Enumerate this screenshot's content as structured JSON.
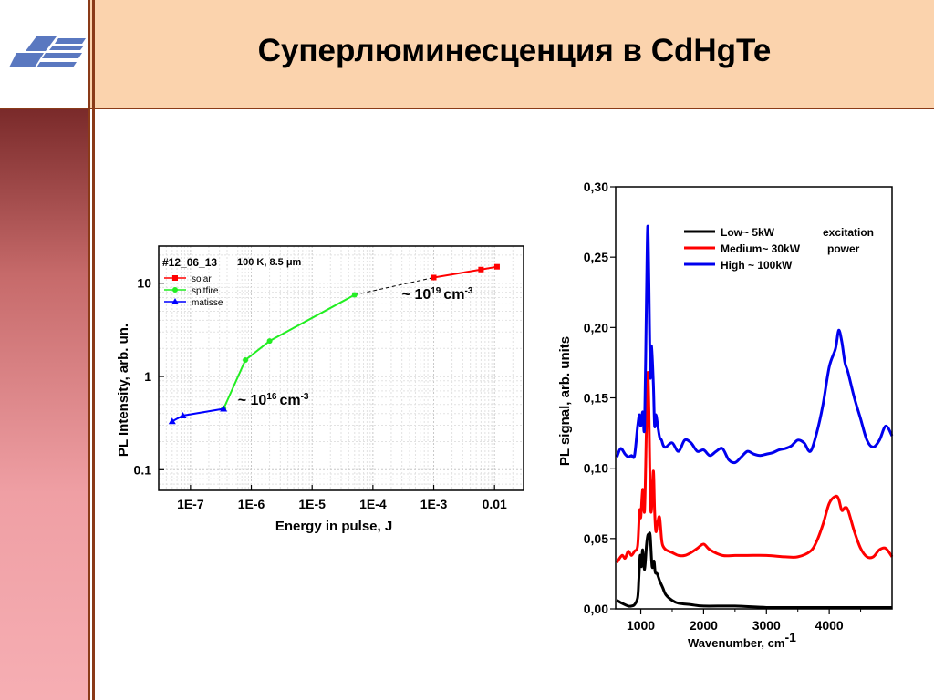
{
  "slide": {
    "title": "Суперлюминесценция в CdHgTe"
  },
  "chart_data": [
    {
      "type": "line",
      "x_scale": "log",
      "y_scale": "log",
      "xlabel": "Energy in pulse, J",
      "ylabel": "PL Intensity, arb. un.",
      "xlim": [
        3e-08,
        0.03
      ],
      "ylim": [
        0.06,
        25
      ],
      "x_ticks": [
        {
          "value": 1e-07,
          "label": "1E-7"
        },
        {
          "value": 1e-06,
          "label": "1E-6"
        },
        {
          "value": 1e-05,
          "label": "1E-5"
        },
        {
          "value": 0.0001,
          "label": "1E-4"
        },
        {
          "value": 0.001,
          "label": "1E-3"
        },
        {
          "value": 0.01,
          "label": "0.01"
        }
      ],
      "y_ticks": [
        {
          "value": 0.1,
          "label": "0.1"
        },
        {
          "value": 1,
          "label": "1"
        },
        {
          "value": 10,
          "label": "10"
        }
      ],
      "sample_label": "#12_06_13",
      "conditions_label": "100 K, 8.5 μm",
      "grid": true,
      "legend_position": "top-left",
      "series": [
        {
          "name": "solar",
          "color": "#ff0000",
          "marker": "square",
          "x": [
            0.001,
            0.006,
            0.011
          ],
          "y": [
            11.5,
            14,
            15
          ]
        },
        {
          "name": "spitfire",
          "color": "#22ee22",
          "marker": "circle",
          "x": [
            3.5e-07,
            8e-07,
            2e-06,
            5e-05
          ],
          "y": [
            0.45,
            1.5,
            2.4,
            7.5
          ]
        },
        {
          "name": "matisse",
          "color": "#0000ff",
          "marker": "triangle",
          "x": [
            5e-08,
            7.5e-08,
            3.5e-07
          ],
          "y": [
            0.33,
            0.38,
            0.45
          ]
        }
      ],
      "connector": {
        "style": "dashed",
        "color": "#000000",
        "x": [
          5e-05,
          0.001
        ],
        "y": [
          7.5,
          11.5
        ]
      },
      "annotations": [
        {
          "text": "~ 10",
          "sup": "19",
          "unit": "cm",
          "unit_sup": "-3",
          "x": 0.0003,
          "y": 6.8
        },
        {
          "text": "~ 10",
          "sup": "16",
          "unit": "cm",
          "unit_sup": "-3",
          "x": 6e-07,
          "y": 0.5
        }
      ]
    },
    {
      "type": "line",
      "xlabel": "Wavenumber, cm",
      "xlabel_sup": "-1",
      "ylabel": "PL signal, arb. units",
      "xlim": [
        600,
        5000
      ],
      "ylim": [
        0,
        0.3
      ],
      "x_ticks": [
        {
          "value": 1000,
          "label": "1000"
        },
        {
          "value": 2000,
          "label": "2000"
        },
        {
          "value": 3000,
          "label": "3000"
        },
        {
          "value": 4000,
          "label": "4000"
        }
      ],
      "y_ticks": [
        {
          "value": 0.0,
          "label": "0,00"
        },
        {
          "value": 0.05,
          "label": "0,05"
        },
        {
          "value": 0.1,
          "label": "0,10"
        },
        {
          "value": 0.15,
          "label": "0,15"
        },
        {
          "value": 0.2,
          "label": "0,20"
        },
        {
          "value": 0.25,
          "label": "0,25"
        },
        {
          "value": 0.3,
          "label": "0,30"
        }
      ],
      "legend_position": "top-right",
      "legend_side_text": [
        "excitation",
        "power"
      ],
      "series": [
        {
          "name": "Low~ 5kW",
          "color": "#000000",
          "x": [
            620,
            700,
            800,
            850,
            900,
            950,
            970,
            990,
            1010,
            1030,
            1060,
            1090,
            1110,
            1130,
            1150,
            1180,
            1210,
            1230,
            1260,
            1300,
            1350,
            1400,
            1500,
            1600,
            1800,
            2000,
            2500,
            3000,
            3500,
            4000,
            4500,
            5000
          ],
          "y": [
            0.006,
            0.004,
            0.002,
            0.002,
            0.003,
            0.008,
            0.022,
            0.038,
            0.03,
            0.042,
            0.028,
            0.045,
            0.052,
            0.053,
            0.052,
            0.03,
            0.034,
            0.026,
            0.025,
            0.02,
            0.015,
            0.01,
            0.006,
            0.004,
            0.003,
            0.002,
            0.002,
            0.001,
            0.001,
            0.001,
            0.001,
            0.001
          ]
        },
        {
          "name": "Medium~ 30kW",
          "color": "#ff0000",
          "x": [
            620,
            700,
            750,
            800,
            850,
            900,
            950,
            980,
            1000,
            1030,
            1060,
            1090,
            1110,
            1130,
            1150,
            1170,
            1200,
            1220,
            1240,
            1270,
            1300,
            1330,
            1350,
            1400,
            1500,
            1600,
            1700,
            1800,
            1900,
            2000,
            2100,
            2300,
            2500,
            2700,
            3000,
            3300,
            3500,
            3700,
            3800,
            3900,
            4000,
            4100,
            4150,
            4200,
            4250,
            4300,
            4400,
            4500,
            4600,
            4700,
            4800,
            4900,
            5000
          ],
          "y": [
            0.033,
            0.038,
            0.036,
            0.041,
            0.038,
            0.041,
            0.045,
            0.07,
            0.065,
            0.085,
            0.07,
            0.13,
            0.168,
            0.14,
            0.08,
            0.07,
            0.098,
            0.07,
            0.055,
            0.062,
            0.065,
            0.05,
            0.045,
            0.042,
            0.04,
            0.038,
            0.038,
            0.04,
            0.043,
            0.046,
            0.042,
            0.038,
            0.038,
            0.038,
            0.038,
            0.037,
            0.037,
            0.041,
            0.048,
            0.06,
            0.075,
            0.08,
            0.078,
            0.07,
            0.072,
            0.07,
            0.055,
            0.043,
            0.037,
            0.037,
            0.042,
            0.043,
            0.037
          ]
        },
        {
          "name": "High ~ 100kW",
          "color": "#0000ee",
          "x": [
            620,
            680,
            750,
            800,
            850,
            900,
            950,
            980,
            1000,
            1030,
            1060,
            1090,
            1110,
            1130,
            1150,
            1170,
            1200,
            1220,
            1240,
            1270,
            1300,
            1330,
            1360,
            1400,
            1500,
            1600,
            1700,
            1800,
            1900,
            2000,
            2100,
            2200,
            2300,
            2400,
            2500,
            2600,
            2700,
            2800,
            2900,
            3000,
            3100,
            3200,
            3300,
            3400,
            3500,
            3600,
            3700,
            3800,
            3900,
            4000,
            4100,
            4150,
            4200,
            4250,
            4300,
            4400,
            4500,
            4600,
            4700,
            4800,
            4900,
            5000
          ],
          "y": [
            0.108,
            0.114,
            0.11,
            0.108,
            0.109,
            0.109,
            0.13,
            0.138,
            0.13,
            0.14,
            0.13,
            0.22,
            0.272,
            0.23,
            0.165,
            0.187,
            0.16,
            0.13,
            0.138,
            0.13,
            0.122,
            0.12,
            0.116,
            0.115,
            0.118,
            0.112,
            0.12,
            0.118,
            0.112,
            0.113,
            0.109,
            0.112,
            0.114,
            0.106,
            0.104,
            0.108,
            0.112,
            0.11,
            0.109,
            0.11,
            0.111,
            0.113,
            0.114,
            0.116,
            0.12,
            0.118,
            0.112,
            0.125,
            0.145,
            0.172,
            0.185,
            0.198,
            0.19,
            0.175,
            0.168,
            0.15,
            0.135,
            0.12,
            0.115,
            0.12,
            0.13,
            0.123
          ]
        }
      ]
    }
  ]
}
